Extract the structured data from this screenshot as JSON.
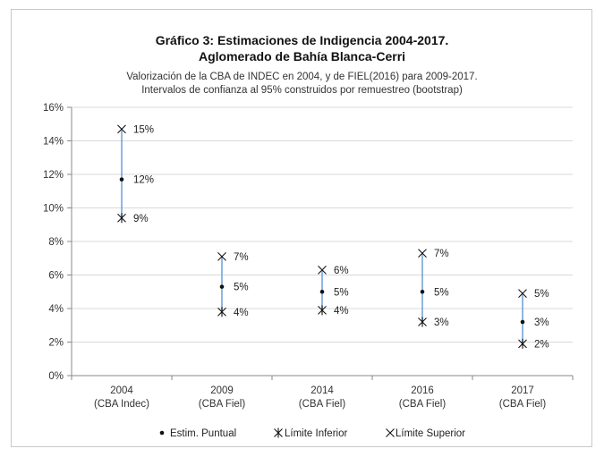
{
  "chart_data": {
    "type": "scatter",
    "title": "Gráfico 3: Estimaciones de Indigencia 2004-2017.",
    "title_line2": "Aglomerado de Bahía Blanca-Cerri",
    "subtitle_line1": "Valorización de la CBA de INDEC en 2004, y de FIEL(2016) para 2009-2017.",
    "subtitle_line2": "Intervalos de confianza al 95% construidos por remuestreo (bootstrap)",
    "categories": [
      {
        "year": "2004",
        "basket": "(CBA Indec)"
      },
      {
        "year": "2009",
        "basket": "(CBA Fiel)"
      },
      {
        "year": "2014",
        "basket": "(CBA Fiel)"
      },
      {
        "year": "2016",
        "basket": "(CBA Fiel)"
      },
      {
        "year": "2017",
        "basket": "(CBA Fiel)"
      }
    ],
    "series": [
      {
        "name": "Estim. Puntual",
        "values": [
          11.7,
          5.3,
          5.0,
          5.0,
          3.2
        ],
        "labels": [
          "12%",
          "5%",
          "5%",
          "5%",
          "3%"
        ]
      },
      {
        "name": "Límite Inferior",
        "values": [
          9.4,
          3.8,
          3.9,
          3.2,
          1.9
        ],
        "labels": [
          "9%",
          "4%",
          "4%",
          "3%",
          "2%"
        ]
      },
      {
        "name": "Límite Superior",
        "values": [
          14.7,
          7.1,
          6.3,
          7.3,
          4.9
        ],
        "labels": [
          "15%",
          "7%",
          "6%",
          "7%",
          "5%"
        ]
      }
    ],
    "ylim": [
      0,
      16
    ],
    "yticks": [
      "0%",
      "2%",
      "4%",
      "6%",
      "8%",
      "10%",
      "12%",
      "14%",
      "16%"
    ],
    "grid": true,
    "legend_position": "bottom",
    "colors": {
      "interval": "#6a9fd8",
      "marker": "#111111",
      "grid": "#d9d9d9",
      "axis": "#888888"
    }
  }
}
